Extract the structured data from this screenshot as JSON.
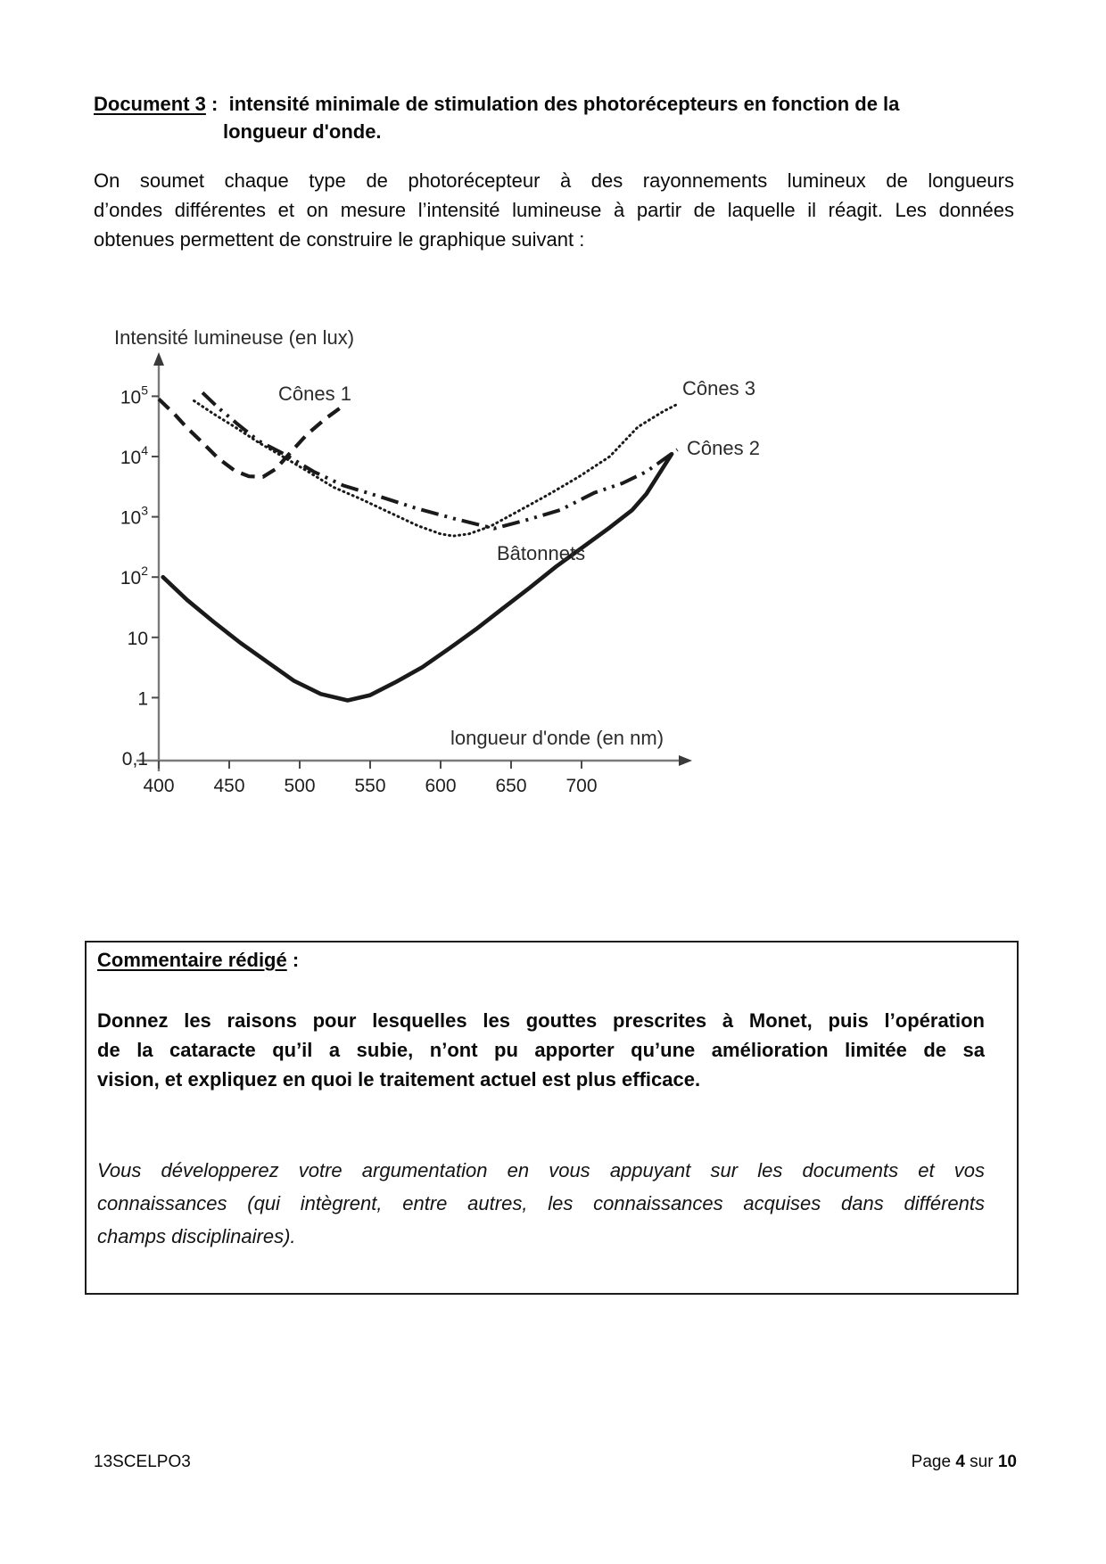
{
  "heading": {
    "label": "Document 3",
    "sep": " :  ",
    "line1": "intensité minimale de stimulation des photorécepteurs en fonction de la",
    "line2": "longueur d'onde."
  },
  "intro": {
    "lines": [
      "On soumet chaque type de photorécepteur à des rayonnements lumineux de longueurs",
      "d’ondes différentes et on mesure l’intensité lumineuse à partir de laquelle il réagit. Les données",
      "obtenues permettent de construire le graphique suivant :"
    ]
  },
  "chart": {
    "y_axis_title": "Intensité lumineuse (en lux)",
    "x_axis_title": "longueur d'onde (en nm)",
    "y_ticks": [
      {
        "text": "10",
        "sup": "5",
        "log": 5
      },
      {
        "text": "10",
        "sup": "4",
        "log": 4
      },
      {
        "text": "10",
        "sup": "3",
        "log": 3
      },
      {
        "text": "10",
        "sup": "2",
        "log": 2
      },
      {
        "text": "10",
        "sup": "",
        "log": 1
      },
      {
        "text": "1",
        "sup": "",
        "log": 0
      },
      {
        "text": "0,1",
        "sup": "",
        "log": -1
      }
    ],
    "x_ticks": [
      "400",
      "450",
      "500",
      "550",
      "600",
      "650",
      "700"
    ],
    "labels": {
      "cones1": "Cônes 1",
      "cones2": "Cônes 2",
      "cones3": "Cônes 3",
      "batonnets": "Bâtonnets"
    },
    "ink_color": "#1a1a1a",
    "axis_color": "#7a7a7a"
  },
  "chart_data": {
    "type": "line",
    "title": "",
    "xlabel": "longueur d'onde (en nm)",
    "ylabel": "Intensité lumineuse (en lux)",
    "x_range": [
      400,
      700
    ],
    "y_scale": "log",
    "y_range": [
      0.1,
      100000
    ],
    "grid": false,
    "legend": "inline-labels",
    "series": [
      {
        "name": "Cônes 1",
        "style": "long-dash",
        "points": [
          [
            400,
            90000
          ],
          [
            411,
            51000
          ],
          [
            420,
            30000
          ],
          [
            431,
            17000
          ],
          [
            442,
            9400
          ],
          [
            454,
            5800
          ],
          [
            464,
            4700
          ],
          [
            474,
            4600
          ],
          [
            483,
            6200
          ],
          [
            494,
            12000
          ],
          [
            505,
            23000
          ],
          [
            518,
            42000
          ],
          [
            531,
            70000
          ]
        ]
      },
      {
        "name": "Cônes 2",
        "style": "dash-dot-dot",
        "points": [
          [
            431,
            115000
          ],
          [
            442,
            65000
          ],
          [
            455,
            36000
          ],
          [
            471,
            18000
          ],
          [
            489,
            11000
          ],
          [
            510,
            5600
          ],
          [
            531,
            3300
          ],
          [
            556,
            2200
          ],
          [
            582,
            1400
          ],
          [
            609,
            940
          ],
          [
            638,
            640
          ],
          [
            662,
            900
          ],
          [
            685,
            1300
          ],
          [
            709,
            2500
          ],
          [
            729,
            3600
          ],
          [
            746,
            5600
          ],
          [
            768,
            13000
          ]
        ]
      },
      {
        "name": "Cônes 3",
        "style": "dotted",
        "points": [
          [
            425,
            84000
          ],
          [
            439,
            51000
          ],
          [
            454,
            31000
          ],
          [
            471,
            17000
          ],
          [
            488,
            10000
          ],
          [
            505,
            5800
          ],
          [
            524,
            3100
          ],
          [
            543,
            2000
          ],
          [
            563,
            1200
          ],
          [
            584,
            710
          ],
          [
            600,
            520
          ],
          [
            609,
            480
          ],
          [
            620,
            520
          ],
          [
            635,
            690
          ],
          [
            654,
            1200
          ],
          [
            676,
            2300
          ],
          [
            698,
            4600
          ],
          [
            720,
            10000
          ],
          [
            740,
            31000
          ],
          [
            758,
            56000
          ],
          [
            769,
            76000
          ]
        ]
      },
      {
        "name": "Bâtonnets",
        "style": "solid",
        "points": [
          [
            403,
            100
          ],
          [
            420,
            42
          ],
          [
            439,
            18
          ],
          [
            458,
            8.1
          ],
          [
            477,
            3.9
          ],
          [
            496,
            1.9
          ],
          [
            515,
            1.15
          ],
          [
            534,
            0.9
          ],
          [
            550,
            1.1
          ],
          [
            568,
            1.8
          ],
          [
            587,
            3.2
          ],
          [
            606,
            6.5
          ],
          [
            625,
            13.6
          ],
          [
            644,
            30
          ],
          [
            663,
            66
          ],
          [
            682,
            150
          ],
          [
            701,
            315
          ],
          [
            720,
            665
          ],
          [
            736,
            1300
          ],
          [
            746,
            2400
          ],
          [
            764,
            11000
          ]
        ]
      }
    ]
  },
  "comment_box": {
    "heading": "Commentaire rédigé",
    "heading_colon": " :",
    "bold_lines": [
      "Donnez les raisons pour lesquelles les gouttes prescrites à Monet, puis l’opération",
      "de la cataracte qu’il a subie, n’ont pu apporter qu’une amélioration limitée de sa",
      "vision, et expliquez en quoi le traitement actuel est plus efficace."
    ],
    "italic_lines": [
      "Vous développerez votre argumentation en vous appuyant  sur les documents et vos",
      "connaissances (qui intègrent, entre autres, les connaissances acquises dans différents",
      "champs disciplinaires)."
    ]
  },
  "footer": {
    "left": "13SCELPO3",
    "page_word": "Page ",
    "page_number": "4",
    "of_word": " sur ",
    "page_total": "10"
  }
}
